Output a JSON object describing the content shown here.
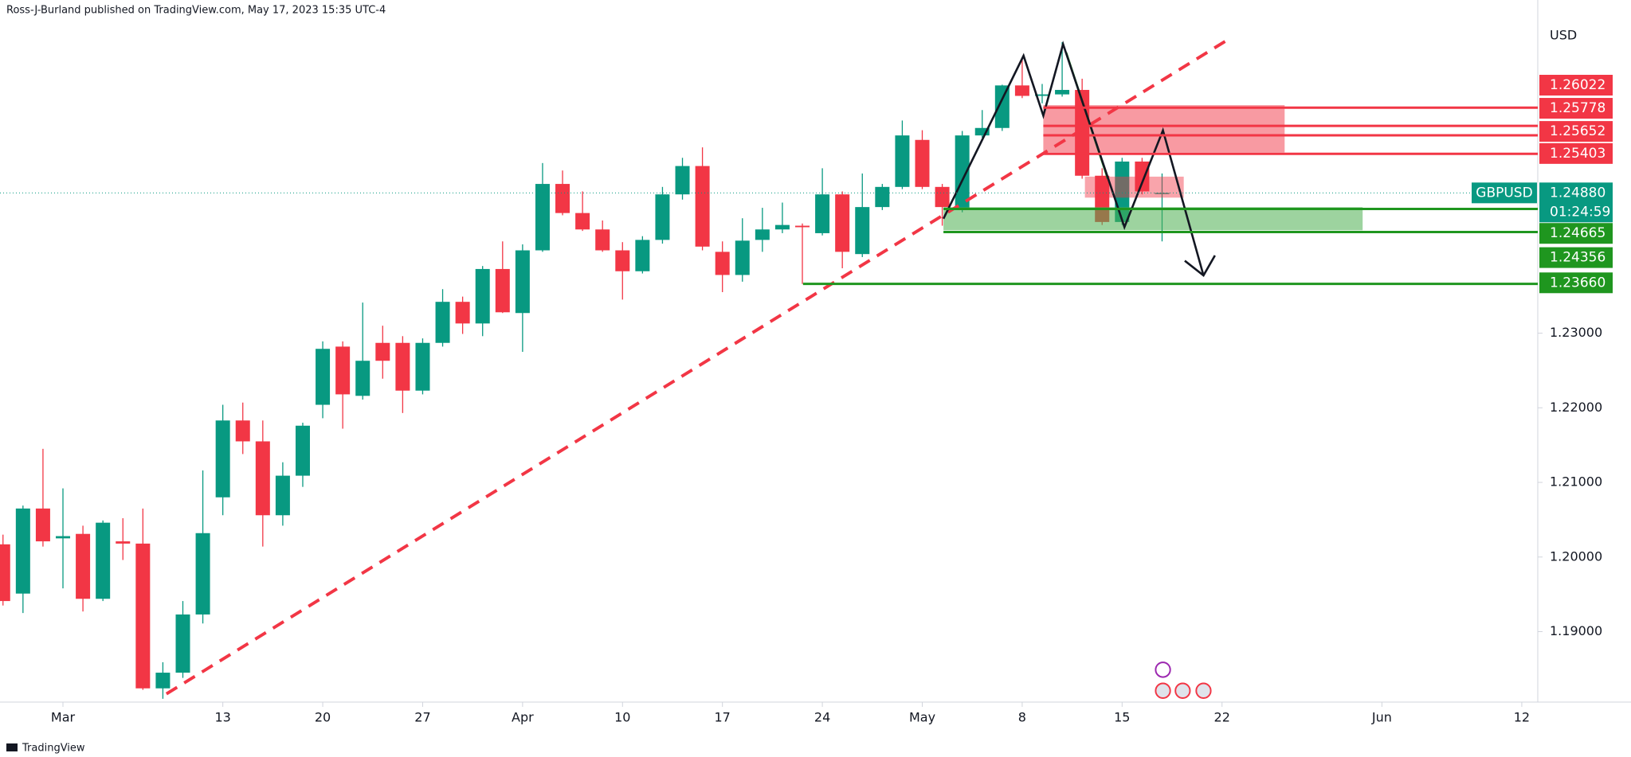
{
  "chart_data": {
    "type": "candlestick",
    "attribution": "Ross-J-Burland published on TradingView.com, May 17, 2023 15:35 UTC-4",
    "currency": "USD",
    "footer": "TradingView",
    "up_color": "#089981",
    "down_color": "#f23645",
    "grid": false,
    "open": [
      1.2017,
      1.1951,
      1.2065,
      1.2025,
      1.2031,
      1.1944,
      1.2021,
      1.2018,
      1.1824,
      1.1845,
      1.1923,
      1.208,
      1.2183,
      1.2155,
      1.2056,
      1.2109,
      1.2204,
      1.2282,
      1.2216,
      1.2287,
      1.2287,
      1.2223,
      1.2287,
      1.2342,
      1.2313,
      1.2386,
      1.2327,
      1.2411,
      1.25,
      1.2461,
      1.2439,
      1.2411,
      1.2383,
      1.2425,
      1.2486,
      1.2524,
      1.2409,
      1.2378,
      1.2425,
      1.2439,
      1.2444,
      1.2434,
      1.2486,
      1.2406,
      1.2469,
      1.2496,
      1.2559,
      1.2496,
      1.2465,
      1.2565,
      1.2575,
      1.2632,
      1.2618,
      1.262,
      1.2626,
      1.2511,
      1.2449,
      1.253,
      1.2487
    ],
    "high": [
      1.203,
      1.2069,
      1.2145,
      1.2092,
      1.2042,
      1.2049,
      1.2052,
      1.2065,
      1.1859,
      1.1941,
      1.2116,
      1.2204,
      1.2207,
      1.2183,
      1.2127,
      1.218,
      1.2289,
      1.2289,
      1.2341,
      1.231,
      1.2296,
      1.2293,
      1.2359,
      1.2349,
      1.239,
      1.2423,
      1.2419,
      1.2528,
      1.2518,
      1.249,
      1.2451,
      1.2422,
      1.243,
      1.2496,
      1.2535,
      1.2549,
      1.2423,
      1.2454,
      1.2468,
      1.2475,
      1.2447,
      1.2521,
      1.249,
      1.2514,
      1.25,
      1.2585,
      1.2572,
      1.25,
      1.2571,
      1.2599,
      1.2633,
      1.2669,
      1.2634,
      1.269,
      1.2641,
      1.2521,
      1.2535,
      1.2535,
      1.2514
    ],
    "low": [
      1.1935,
      1.1925,
      1.2014,
      1.1958,
      1.1927,
      1.1941,
      1.1996,
      1.1822,
      1.181,
      1.1838,
      1.1911,
      1.2056,
      1.2138,
      1.2014,
      1.2042,
      1.2094,
      1.2186,
      1.2172,
      1.2211,
      1.2239,
      1.2193,
      1.2218,
      1.2282,
      1.2299,
      1.2296,
      1.2327,
      1.2275,
      1.2409,
      1.2458,
      1.2437,
      1.2409,
      1.2345,
      1.238,
      1.242,
      1.2479,
      1.2411,
      1.2355,
      1.2369,
      1.2409,
      1.2434,
      1.2366,
      1.2431,
      1.2387,
      1.2402,
      1.2465,
      1.2493,
      1.2493,
      1.2444,
      1.2462,
      1.2562,
      1.2571,
      1.2615,
      1.2608,
      1.2617,
      1.2507,
      1.2445,
      1.2445,
      1.2486,
      1.2423
    ],
    "close": [
      1.1941,
      1.2065,
      1.2021,
      1.2028,
      1.1944,
      1.2046,
      1.2018,
      1.1824,
      1.1845,
      1.1923,
      1.2032,
      1.2183,
      1.2155,
      1.2056,
      1.2109,
      1.2176,
      1.2279,
      1.2218,
      1.2263,
      1.2263,
      1.2223,
      1.2287,
      1.2342,
      1.2313,
      1.2386,
      1.2328,
      1.2411,
      1.25,
      1.2461,
      1.2439,
      1.2411,
      1.2383,
      1.2425,
      1.2486,
      1.2524,
      1.2416,
      1.2378,
      1.2424,
      1.2439,
      1.2445,
      1.2442,
      1.2486,
      1.2409,
      1.2469,
      1.2496,
      1.2565,
      1.2496,
      1.2469,
      1.2565,
      1.2575,
      1.2632,
      1.2618,
      1.262,
      1.2626,
      1.2511,
      1.2449,
      1.253,
      1.249,
      1.2488
    ],
    "xlim": [
      -0.15,
      76.8
    ],
    "xticks": [
      {
        "value": 3,
        "label": "Mar"
      },
      {
        "value": 11,
        "label": "13"
      },
      {
        "value": 16,
        "label": "20"
      },
      {
        "value": 21,
        "label": "27"
      },
      {
        "value": 26,
        "label": "Apr"
      },
      {
        "value": 31,
        "label": "10"
      },
      {
        "value": 36,
        "label": "17"
      },
      {
        "value": 41,
        "label": "24"
      },
      {
        "value": 46,
        "label": "May"
      },
      {
        "value": 51,
        "label": "8"
      },
      {
        "value": 56,
        "label": "15"
      },
      {
        "value": 61,
        "label": "22"
      },
      {
        "value": 69,
        "label": "Jun"
      },
      {
        "value": 76,
        "label": "12"
      }
    ],
    "ylim": [
      1.18056,
      1.27465
    ],
    "yticks": [
      {
        "value": 1.19,
        "label": "1.19000"
      },
      {
        "value": 1.2,
        "label": "1.20000"
      },
      {
        "value": 1.21,
        "label": "1.21000"
      },
      {
        "value": 1.22,
        "label": "1.22000"
      },
      {
        "value": 1.23,
        "label": "1.23000"
      }
    ],
    "price_levels": [
      {
        "value": 1.26022,
        "label": "1.26022",
        "color": "#f23645"
      },
      {
        "value": 1.25778,
        "label": "1.25778",
        "color": "#f23645"
      },
      {
        "value": 1.25652,
        "label": "1.25652",
        "color": "#f23645"
      },
      {
        "value": 1.25403,
        "label": "1.25403",
        "color": "#f23645"
      },
      {
        "value": 1.24665,
        "label": "1.24665",
        "color": "#1f961f"
      },
      {
        "value": 1.24356,
        "label": "1.24356",
        "color": "#1f961f"
      },
      {
        "value": 1.2366,
        "label": "1.23660",
        "color": "#1f961f"
      }
    ],
    "current_price": {
      "symbol": "GBPUSD",
      "value": 1.2488,
      "label": "1.24880",
      "countdown": "01:24:59",
      "color": "#089981"
    }
  }
}
